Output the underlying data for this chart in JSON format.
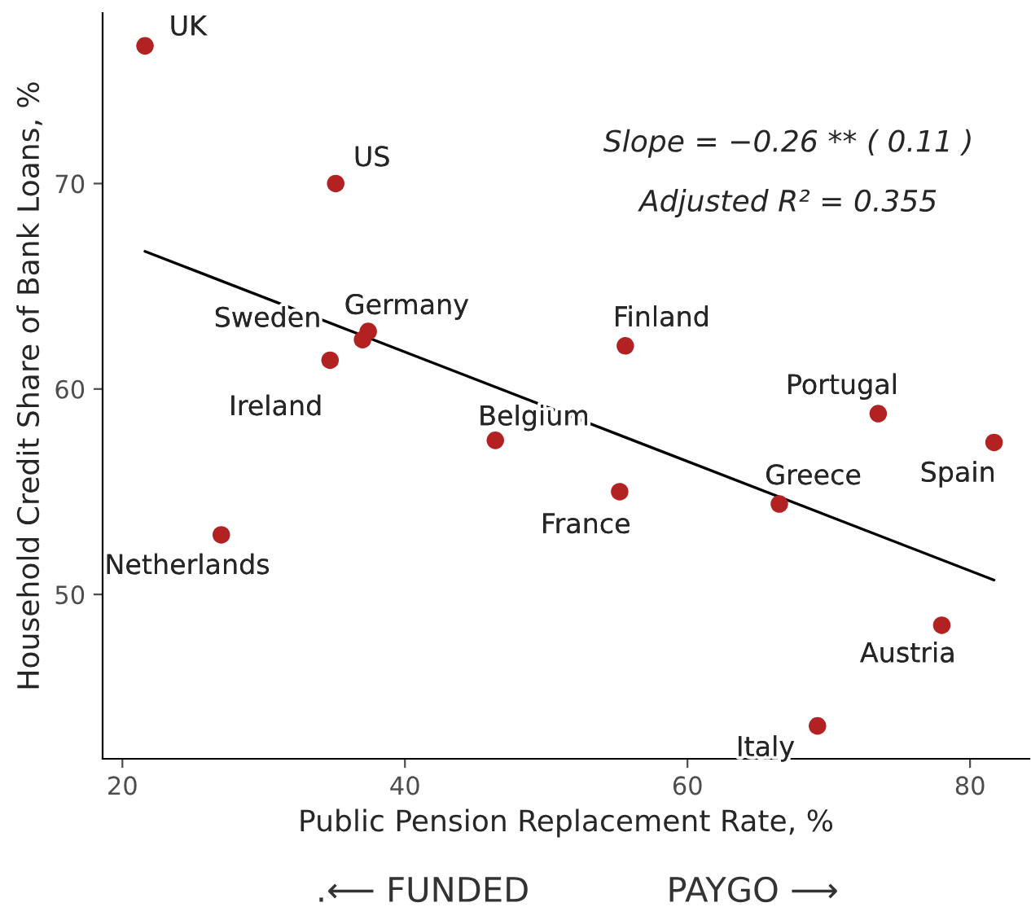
{
  "chart_data": {
    "type": "scatter",
    "xlabel": "Public Pension Replacement Rate, %",
    "ylabel": "Household Credit Share of Bank Loans, %",
    "xlim": [
      18.6,
      84.2
    ],
    "ylim": [
      42.0,
      78.3
    ],
    "xticks": [
      20,
      40,
      60,
      80
    ],
    "yticks": [
      50,
      60,
      70
    ],
    "grid": false,
    "legend": false,
    "marker": "circle",
    "series": [
      {
        "color": "#b22222",
        "x": [
          21.6,
          35.1,
          37.4,
          37.0,
          34.7,
          55.6,
          46.4,
          73.5,
          81.7,
          55.2,
          66.5,
          27.0,
          78.0,
          69.2
        ],
        "values": [
          76.7,
          70.0,
          62.8,
          62.4,
          61.4,
          62.1,
          57.5,
          58.8,
          57.4,
          55.0,
          54.4,
          52.9,
          48.5,
          43.6
        ]
      },
      {
        "type": "line",
        "marker": "none",
        "color": "#000000",
        "x": [
          21.6,
          81.7
        ],
        "values": [
          66.7,
          50.7
        ]
      }
    ],
    "annotations": [
      {
        "text": "UK",
        "x": 21.6,
        "y": 76.7
      },
      {
        "text": "US",
        "x": 35.1,
        "y": 70.0
      },
      {
        "text": "Germany",
        "x": 37.4,
        "y": 62.8
      },
      {
        "text": "Sweden",
        "x": 37.0,
        "y": 62.4
      },
      {
        "text": "Ireland",
        "x": 34.7,
        "y": 61.4
      },
      {
        "text": "Finland",
        "x": 55.6,
        "y": 62.1
      },
      {
        "text": "Belgium",
        "x": 46.4,
        "y": 57.5
      },
      {
        "text": "Portugal",
        "x": 73.5,
        "y": 58.8
      },
      {
        "text": "Spain",
        "x": 81.7,
        "y": 57.4
      },
      {
        "text": "France",
        "x": 55.2,
        "y": 55.0
      },
      {
        "text": "Greece",
        "x": 66.5,
        "y": 54.4
      },
      {
        "text": "Netherlands",
        "x": 27.0,
        "y": 52.9
      },
      {
        "text": "Austria",
        "x": 78.0,
        "y": 48.5
      },
      {
        "text": "Italy",
        "x": 69.2,
        "y": 43.6
      },
      "Slope = −0.26 ** ( 0.11 )",
      "Adjusted R² = 0.355",
      ".⟵ FUNDED",
      "PAYGO ⟶"
    ]
  }
}
